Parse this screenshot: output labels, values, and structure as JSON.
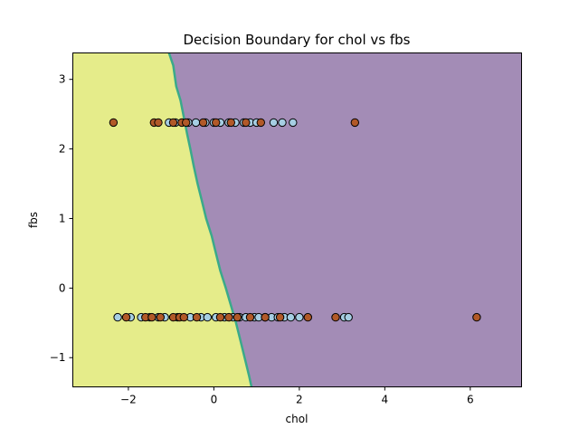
{
  "chart_data": {
    "type": "scatter",
    "title": "Decision Boundary for chol vs fbs",
    "xlabel": "chol",
    "ylabel": "fbs",
    "xlim": [
      -3.3,
      7.2
    ],
    "ylim": [
      -1.42,
      3.38
    ],
    "xticks": [
      -2,
      0,
      2,
      4,
      6
    ],
    "xtick_labels": [
      "−2",
      "0",
      "2",
      "4",
      "6"
    ],
    "yticks": [
      -1,
      0,
      1,
      2,
      3
    ],
    "ytick_labels": [
      "−1",
      "0",
      "1",
      "2",
      "3"
    ],
    "grid": false,
    "regions": [
      {
        "class": 1,
        "color": "#e5ec8a",
        "side": "left"
      },
      {
        "class": 0,
        "color": "#a38cb6",
        "side": "right"
      }
    ],
    "boundary_color": "#3aaa8a",
    "boundary": [
      [
        -1.05,
        3.38
      ],
      [
        -0.95,
        3.2
      ],
      [
        -0.88,
        2.9
      ],
      [
        -0.78,
        2.7
      ],
      [
        -0.7,
        2.45
      ],
      [
        -0.62,
        2.2
      ],
      [
        -0.55,
        2.0
      ],
      [
        -0.47,
        1.75
      ],
      [
        -0.38,
        1.5
      ],
      [
        -0.28,
        1.25
      ],
      [
        -0.18,
        1.0
      ],
      [
        -0.05,
        0.75
      ],
      [
        0.05,
        0.5
      ],
      [
        0.15,
        0.25
      ],
      [
        0.28,
        0.0
      ],
      [
        0.4,
        -0.25
      ],
      [
        0.52,
        -0.5
      ],
      [
        0.62,
        -0.75
      ],
      [
        0.72,
        -1.0
      ],
      [
        0.82,
        -1.25
      ],
      [
        0.88,
        -1.42
      ]
    ],
    "series": [
      {
        "color": "#a6cee3",
        "x": [
          -1.05,
          -0.9,
          -0.6,
          -0.42,
          -0.2,
          0.0,
          0.15,
          0.35,
          0.5,
          0.7,
          0.85,
          1.0,
          1.4,
          1.6,
          1.85,
          -2.25,
          -1.95,
          -1.7,
          -1.5,
          -1.3,
          -1.15,
          -0.85,
          -0.55,
          -0.3,
          -0.15,
          0.05,
          0.25,
          0.45,
          0.6,
          0.75,
          0.95,
          1.05,
          1.2,
          1.35,
          1.5,
          1.65,
          1.8,
          2.0,
          3.05,
          3.15
        ],
        "y": [
          2.38,
          2.38,
          2.38,
          2.38,
          2.38,
          2.38,
          2.38,
          2.38,
          2.38,
          2.38,
          2.38,
          2.38,
          2.38,
          2.38,
          2.38,
          -0.42,
          -0.42,
          -0.42,
          -0.42,
          -0.42,
          -0.42,
          -0.42,
          -0.42,
          -0.42,
          -0.42,
          -0.42,
          -0.42,
          -0.42,
          -0.42,
          -0.42,
          -0.42,
          -0.42,
          -0.42,
          -0.42,
          -0.42,
          -0.42,
          -0.42,
          -0.42,
          -0.42,
          -0.42
        ]
      },
      {
        "color": "#b15928",
        "x": [
          -2.35,
          -1.4,
          -1.3,
          -0.95,
          -0.75,
          -0.65,
          -0.25,
          0.05,
          0.4,
          0.75,
          1.1,
          3.3,
          -2.05,
          -1.6,
          -1.45,
          -1.25,
          -0.95,
          -0.8,
          -0.7,
          -0.4,
          0.15,
          0.35,
          0.55,
          0.85,
          1.2,
          1.55,
          2.2,
          2.85,
          6.15
        ],
        "y": [
          2.38,
          2.38,
          2.38,
          2.38,
          2.38,
          2.38,
          2.38,
          2.38,
          2.38,
          2.38,
          2.38,
          2.38,
          -0.42,
          -0.42,
          -0.42,
          -0.42,
          -0.42,
          -0.42,
          -0.42,
          -0.42,
          -0.42,
          -0.42,
          -0.42,
          -0.42,
          -0.42,
          -0.42,
          -0.42,
          -0.42,
          -0.42
        ]
      }
    ]
  }
}
